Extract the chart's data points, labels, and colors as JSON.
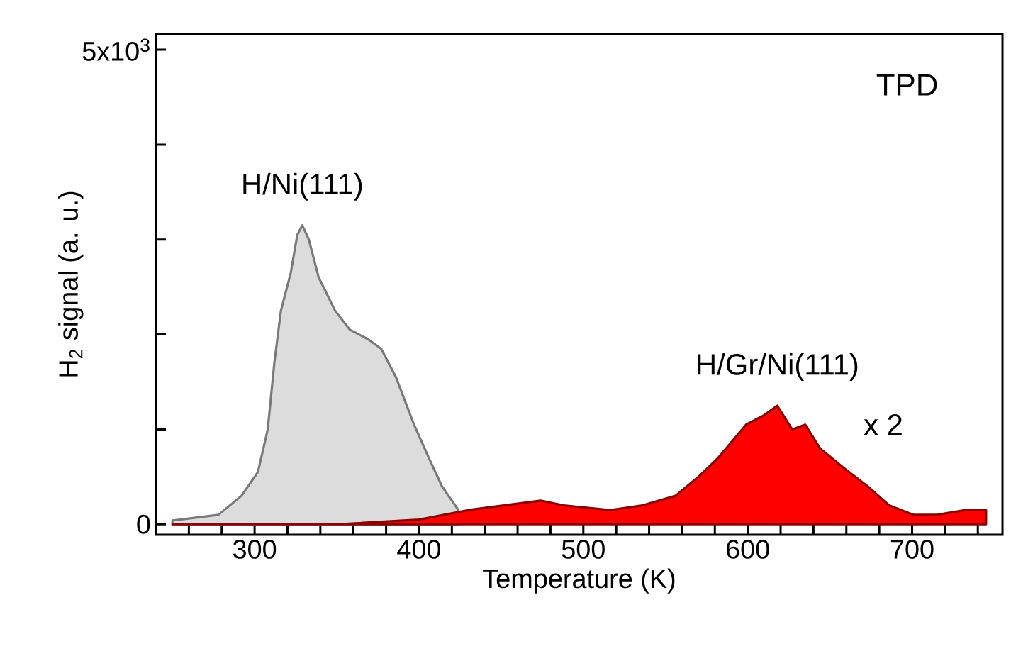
{
  "chart_data": {
    "type": "area",
    "xlabel": "Temperature (K)",
    "ylabel": "H$_{2}$ signal (a. u.)",
    "xlim": [
      240,
      755
    ],
    "ylim": [
      -110,
      5165
    ],
    "xticks": [
      {
        "value": 260,
        "label": null
      },
      {
        "value": 280,
        "label": null
      },
      300,
      {
        "value": 320,
        "label": null
      },
      {
        "value": 340,
        "label": null
      },
      {
        "value": 360,
        "label": null
      },
      {
        "value": 380,
        "label": null
      },
      400,
      {
        "value": 420,
        "label": null
      },
      {
        "value": 440,
        "label": null
      },
      {
        "value": 460,
        "label": null
      },
      {
        "value": 480,
        "label": null
      },
      500,
      {
        "value": 520,
        "label": null
      },
      {
        "value": 540,
        "label": null
      },
      {
        "value": 560,
        "label": null
      },
      {
        "value": 580,
        "label": null
      },
      600,
      {
        "value": 620,
        "label": null
      },
      {
        "value": 640,
        "label": null
      },
      {
        "value": 660,
        "label": null
      },
      {
        "value": 680,
        "label": null
      },
      700,
      {
        "value": 720,
        "label": null
      },
      {
        "value": 740,
        "label": null
      }
    ],
    "yticks": [
      0,
      {
        "value": 1000,
        "label": null
      },
      {
        "value": 2000,
        "label": null
      },
      {
        "value": 3000,
        "label": null
      },
      {
        "value": 4000,
        "label": null
      },
      {
        "value": 5000,
        "label": "5x10$^{3}$"
      }
    ],
    "series": [
      {
        "name": "H/Ni(111)",
        "color": "#dcdcdc",
        "x": [
          250,
          278,
          292,
          302,
          308,
          312,
          316,
          322,
          326,
          329,
          333,
          339,
          349,
          358,
          369,
          377,
          386,
          397,
          406,
          414,
          424
        ],
        "values": [
          40,
          100,
          300,
          550,
          1000,
          1700,
          2250,
          2650,
          3050,
          3150,
          3000,
          2600,
          2250,
          2050,
          1950,
          1850,
          1550,
          1050,
          700,
          400,
          150
        ]
      },
      {
        "name": "H/Gr/Ni(111)",
        "color": "#ff0000",
        "x": [
          250,
          300,
          350,
          400,
          430,
          474,
          488,
          516,
          536,
          556,
          570,
          582,
          599,
          610,
          618,
          627,
          635,
          644,
          658,
          673,
          686,
          701,
          715,
          732,
          745
        ],
        "values": [
          0,
          0,
          0,
          50,
          150,
          250,
          200,
          150,
          200,
          300,
          500,
          700,
          1050,
          1150,
          1250,
          1000,
          1050,
          800,
          600,
          400,
          200,
          100,
          100,
          150,
          150
        ]
      }
    ],
    "annotations": [
      "TPD",
      "x 2"
    ]
  }
}
